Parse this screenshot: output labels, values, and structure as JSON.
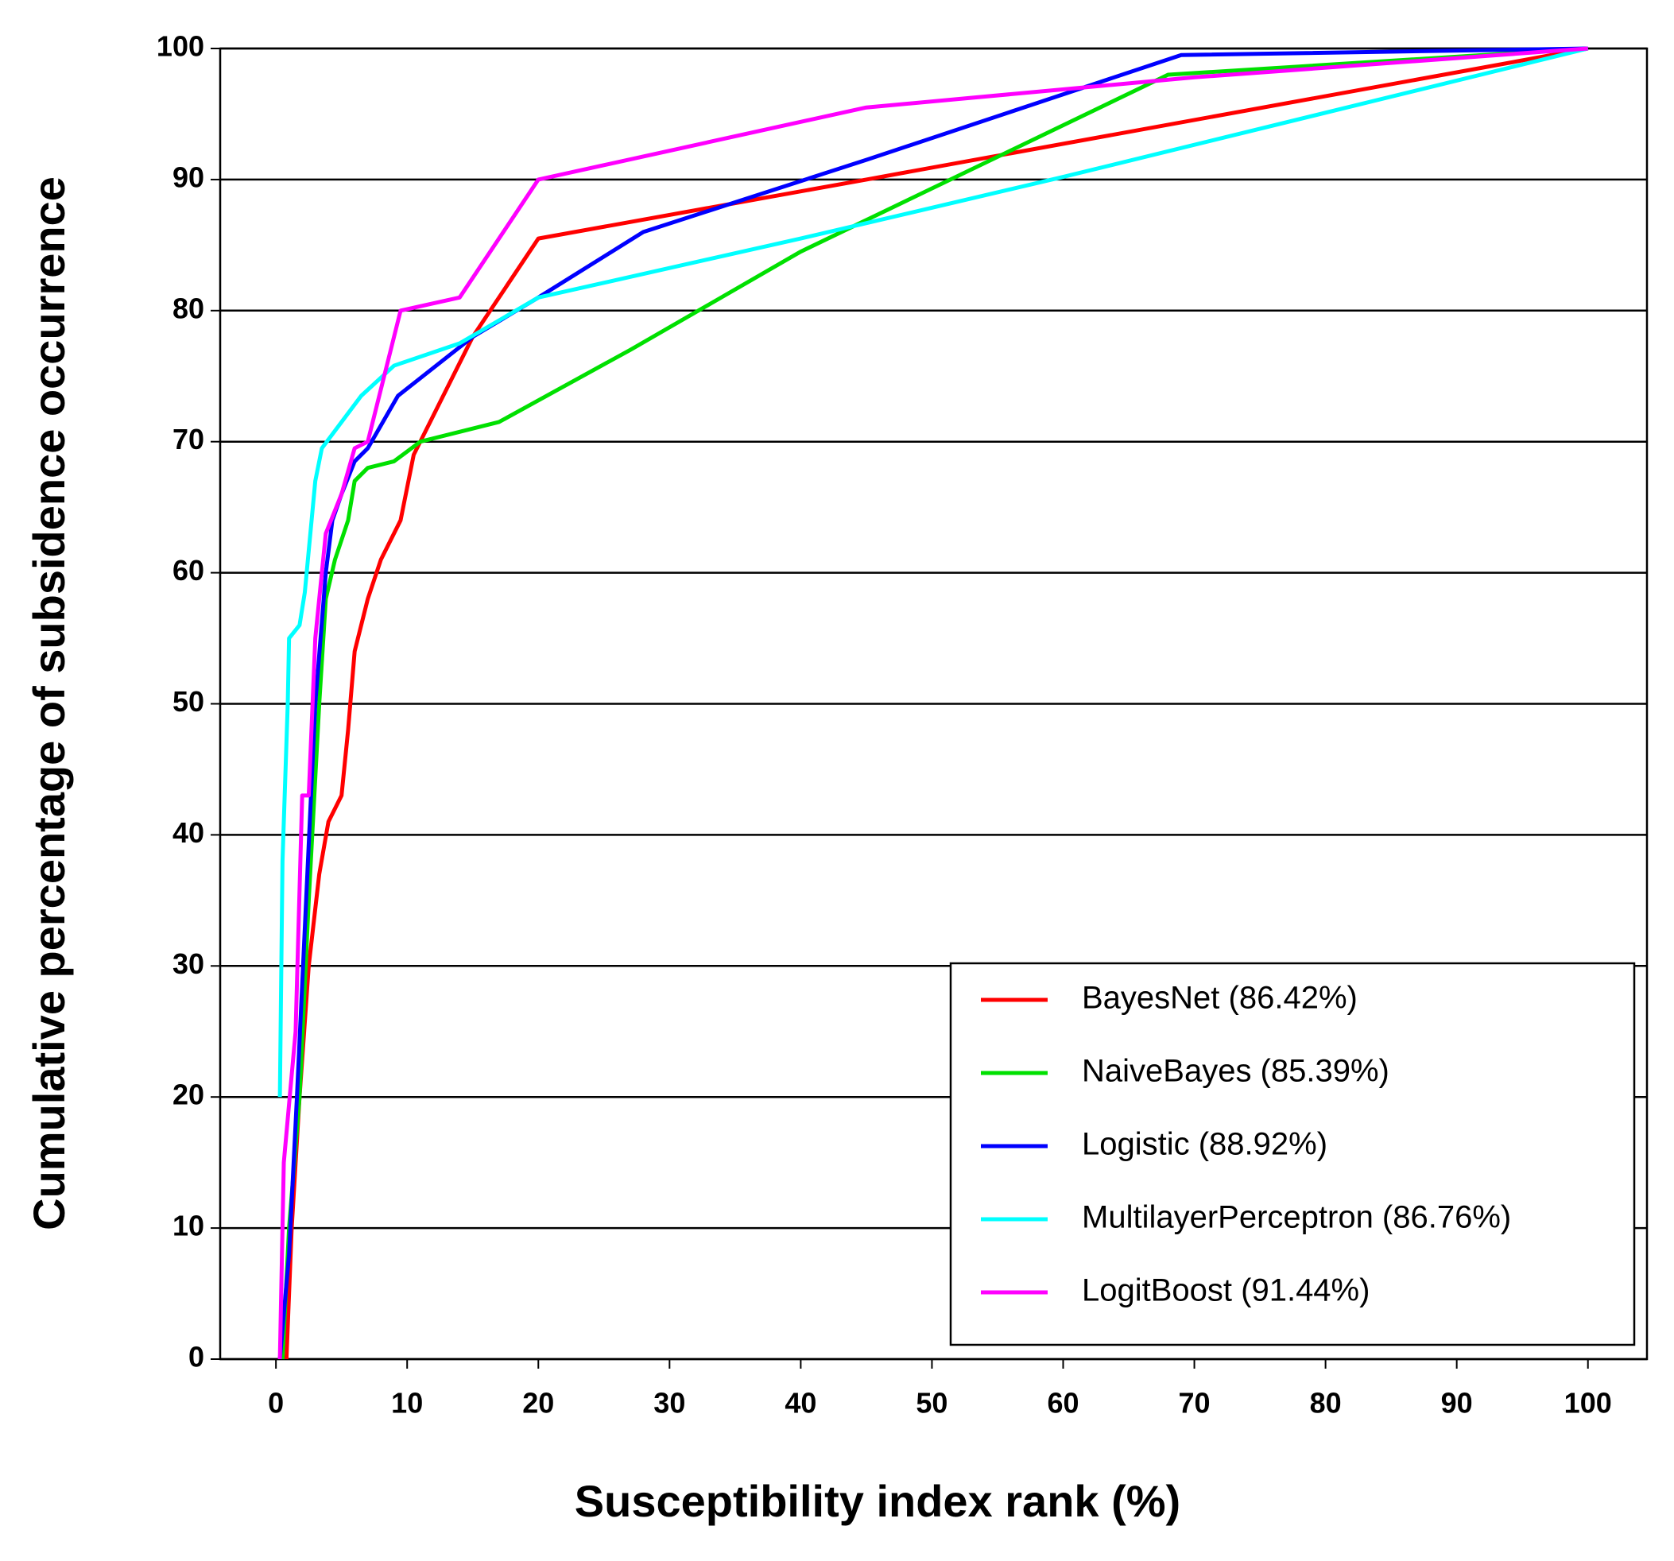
{
  "chart_data": {
    "type": "line",
    "x_label": "Susceptibility index rank (%)",
    "y_label": "Cumulative percentage of subsidence occurrence",
    "xlim": [
      -4.25,
      104.5
    ],
    "ylim": [
      0,
      100
    ],
    "xticks": [
      0,
      10,
      20,
      30,
      40,
      50,
      60,
      70,
      80,
      90,
      100
    ],
    "yticks": [
      0,
      10,
      20,
      30,
      40,
      50,
      60,
      70,
      80,
      90,
      100
    ],
    "grid": true,
    "legend": "lower right",
    "series": [
      {
        "name": "BayesNet (86.42%)",
        "color": "#ff0000",
        "x": [
          0.8,
          1.2,
          1.8,
          2.5,
          3.3,
          4,
          5,
          5.5,
          6,
          7,
          8,
          9.5,
          10.5,
          12,
          15,
          20,
          45,
          100
        ],
        "values": [
          0,
          10,
          20,
          30,
          37,
          41,
          43,
          48,
          54,
          58,
          61,
          64,
          69,
          72,
          78,
          85.5,
          90,
          100
        ]
      },
      {
        "name": "NaiveBayes (85.39%)",
        "color": "#00e000",
        "x": [
          0.5,
          1,
          1.8,
          2.5,
          3.3,
          3.8,
          4.5,
          5.5,
          6,
          7,
          9,
          11,
          15,
          17,
          27,
          40,
          68,
          100
        ],
        "values": [
          0,
          10,
          20,
          35,
          50,
          58,
          61,
          64,
          67,
          68,
          68.5,
          70,
          71,
          71.5,
          77,
          84.5,
          98,
          100
        ]
      },
      {
        "name": "Logistic (88.92%)",
        "color": "#0000ff",
        "x": [
          0.3,
          1,
          1.6,
          2.3,
          3,
          3.8,
          4.3,
          5,
          6,
          7,
          9.3,
          15,
          20,
          28,
          45,
          69,
          100
        ],
        "values": [
          0,
          8,
          20,
          35,
          50,
          60,
          64,
          66,
          68.5,
          69.5,
          73.5,
          78,
          81,
          86,
          91.5,
          99.5,
          100
        ]
      },
      {
        "name": "MultilayerPerceptron (86.76%)",
        "color": "#00ffff",
        "x": [
          0.3,
          0.5,
          0.9,
          1,
          1.8,
          2.2,
          3,
          3.5,
          6.5,
          9,
          14,
          20,
          40,
          60,
          100
        ],
        "values": [
          20,
          38,
          50,
          55,
          56,
          58.5,
          67,
          69.5,
          73.5,
          75.8,
          77.5,
          81,
          85.5,
          90.2,
          100
        ]
      },
      {
        "name": "LogitBoost (91.44%)",
        "color": "#ff00ff",
        "x": [
          0.3,
          0.6,
          1.5,
          2,
          2.5,
          3,
          3.8,
          5,
          6,
          7,
          9.5,
          14,
          20,
          45,
          70,
          100
        ],
        "values": [
          0,
          15,
          25,
          43,
          43,
          55,
          63,
          66,
          69.5,
          70,
          80,
          81,
          90,
          95.5,
          97.8,
          100
        ]
      }
    ]
  }
}
